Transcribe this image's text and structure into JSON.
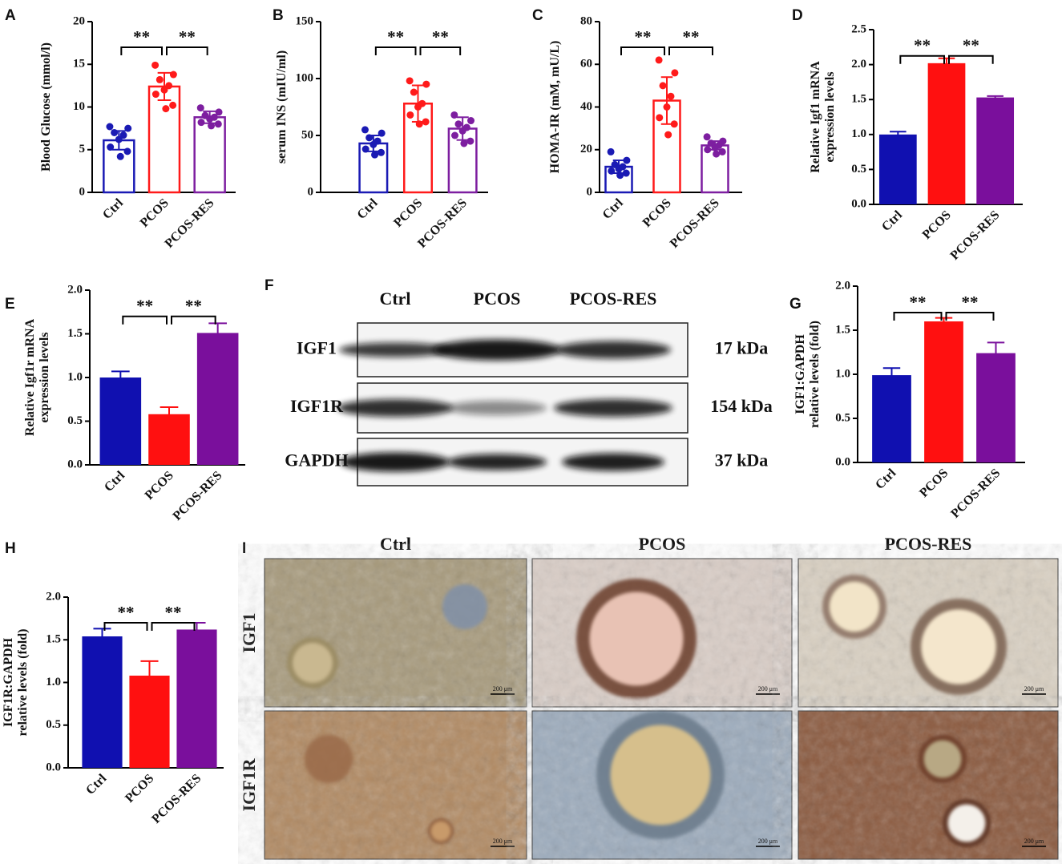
{
  "chart_data": [
    {
      "type": "bar",
      "panel": "A",
      "ylabel": "Blood Glucose (mmol/l)",
      "categories": [
        "Ctrl",
        "PCOS",
        "PCOS-RES"
      ],
      "values": [
        6.1,
        12.4,
        8.8
      ],
      "errors": [
        1.1,
        1.6,
        0.7
      ],
      "points": [
        [
          7.7,
          7.5,
          7.0,
          6.7,
          6.2,
          5.3,
          4.8,
          4.2
        ],
        [
          14.9,
          13.8,
          13.2,
          12.5,
          12.0,
          11.5,
          10.2,
          9.8
        ],
        [
          9.9,
          9.4,
          9.0,
          8.8,
          8.6,
          8.2,
          8.0,
          7.8
        ]
      ],
      "colors": [
        "#1a1ab4",
        "#ff1a1a",
        "#7d1ea0"
      ],
      "bar_style": "outline",
      "ylim": [
        0,
        20
      ],
      "yticks": [
        0,
        5,
        10,
        15,
        20
      ],
      "annotations": [
        "**",
        "**"
      ]
    },
    {
      "type": "bar",
      "panel": "B",
      "ylabel": "serum INS (mIU/ml)",
      "categories": [
        "Ctrl",
        "PCOS",
        "PCOS-RES"
      ],
      "values": [
        43,
        78,
        56
      ],
      "errors": [
        7,
        16,
        10
      ],
      "points": [
        [
          55,
          52,
          48,
          45,
          42,
          38,
          35,
          33
        ],
        [
          98,
          95,
          88,
          78,
          75,
          68,
          62,
          60
        ],
        [
          68,
          63,
          60,
          57,
          54,
          50,
          45,
          43
        ]
      ],
      "colors": [
        "#1a1ab4",
        "#ff1a1a",
        "#7d1ea0"
      ],
      "bar_style": "outline",
      "ylim": [
        0,
        150
      ],
      "yticks": [
        0,
        50,
        100,
        150
      ],
      "annotations": [
        "**",
        "**"
      ]
    },
    {
      "type": "bar",
      "panel": "C",
      "ylabel": "HOMA-IR (mM, mU/L)",
      "categories": [
        "Ctrl",
        "PCOS",
        "PCOS-RES"
      ],
      "values": [
        12,
        43,
        22
      ],
      "errors": [
        3,
        11,
        2
      ],
      "points": [
        [
          19,
          15,
          13,
          12,
          11,
          10,
          9,
          8
        ],
        [
          62,
          56,
          50,
          45,
          40,
          35,
          32,
          27
        ],
        [
          26,
          24,
          23,
          22,
          21,
          20,
          19,
          18
        ]
      ],
      "colors": [
        "#1a1ab4",
        "#ff1a1a",
        "#7d1ea0"
      ],
      "bar_style": "outline",
      "ylim": [
        0,
        80
      ],
      "yticks": [
        0,
        20,
        40,
        60,
        80
      ],
      "annotations": [
        "**",
        "**"
      ]
    },
    {
      "type": "bar",
      "panel": "D",
      "ylabel": [
        "Relative Igf1 mRNA",
        "expression levels"
      ],
      "categories": [
        "Ctrl",
        "PCOS",
        "PCOS-RES"
      ],
      "values": [
        1.0,
        2.02,
        1.53
      ],
      "errors": [
        0.04,
        0.07,
        0.02
      ],
      "colors": [
        "#1010b0",
        "#ff1010",
        "#7a0f9c"
      ],
      "bar_style": "filled",
      "ylim": [
        0,
        2.5
      ],
      "yticks": [
        {
          "value": 0,
          "label": "0.0"
        },
        0.5,
        {
          "value": 1,
          "label": "1.0"
        },
        1.5,
        {
          "value": 2,
          "label": "2.0"
        },
        2.5
      ],
      "annotations": [
        "**",
        "**"
      ]
    },
    {
      "type": "bar",
      "panel": "E",
      "ylabel": [
        "Relative Igf1r mRNA",
        "expression levels"
      ],
      "categories": [
        "Ctrl",
        "PCOS",
        "PCOS-RES"
      ],
      "values": [
        1.0,
        0.58,
        1.51
      ],
      "errors": [
        0.07,
        0.08,
        0.11
      ],
      "colors": [
        "#1010b0",
        "#ff1010",
        "#7a0f9c"
      ],
      "bar_style": "filled",
      "ylim": [
        0,
        2
      ],
      "yticks": [
        {
          "value": 0,
          "label": "0.0"
        },
        0.5,
        {
          "value": 1,
          "label": "1.0"
        },
        1.5,
        {
          "value": 2,
          "label": "2.0"
        }
      ],
      "annotations": [
        "**",
        "**"
      ]
    },
    {
      "type": "bar",
      "panel": "G",
      "ylabel": [
        "IGF1:GAPDH",
        "relative levels (fold)"
      ],
      "categories": [
        "Ctrl",
        "PCOS",
        "PCOS-RES"
      ],
      "values": [
        0.99,
        1.6,
        1.24
      ],
      "errors": [
        0.08,
        0.04,
        0.12
      ],
      "colors": [
        "#1010b0",
        "#ff1010",
        "#7a0f9c"
      ],
      "bar_style": "filled",
      "ylim": [
        0,
        2
      ],
      "yticks": [
        {
          "value": 0,
          "label": "0.0"
        },
        0.5,
        {
          "value": 1,
          "label": "1.0"
        },
        1.5,
        {
          "value": 2,
          "label": "2.0"
        }
      ],
      "annotations": [
        "**",
        "**"
      ]
    },
    {
      "type": "bar",
      "panel": "H",
      "ylabel": [
        "IGF1R:GAPDH",
        "relative levels (fold)"
      ],
      "categories": [
        "Ctrl",
        "PCOS",
        "PCOS-RES"
      ],
      "values": [
        1.54,
        1.08,
        1.62
      ],
      "errors": [
        0.09,
        0.17,
        0.08
      ],
      "colors": [
        "#1010b0",
        "#ff1010",
        "#7a0f9c"
      ],
      "bar_style": "filled",
      "ylim": [
        0,
        2
      ],
      "yticks": [
        {
          "value": 0,
          "label": "0.0"
        },
        0.5,
        {
          "value": 1,
          "label": "1.0"
        },
        1.5,
        {
          "value": 2,
          "label": "2.0"
        }
      ],
      "annotations": [
        "**",
        "**"
      ]
    }
  ],
  "blot": {
    "panel": "F",
    "columns": [
      "Ctrl",
      "PCOS",
      "PCOS-RES"
    ],
    "rows": [
      {
        "label": "IGF1",
        "size": "17 kDa"
      },
      {
        "label": "IGF1R",
        "size": "154 kDa"
      },
      {
        "label": "GAPDH",
        "size": "37 kDa"
      }
    ]
  },
  "histology": {
    "panel": "I",
    "columns": [
      "Ctrl",
      "PCOS",
      "PCOS-RES"
    ],
    "rows": [
      "IGF1",
      "IGF1R"
    ],
    "scale_bar": "200 μm"
  }
}
